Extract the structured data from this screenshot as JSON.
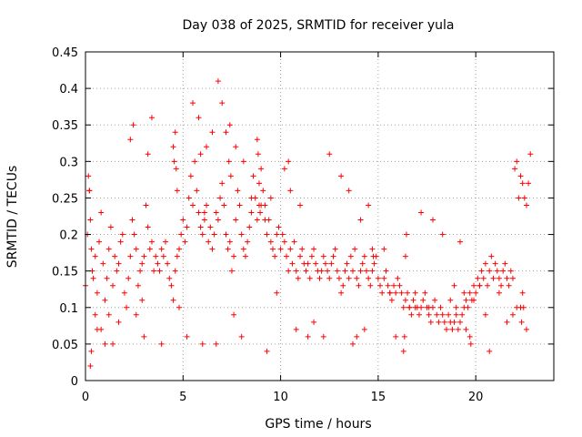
{
  "chart_data": {
    "type": "scatter",
    "title": "Day 038 of 2025, SRMTID for receiver yula",
    "xlabel": "GPS time / hours",
    "ylabel": "SRMTID / TECUs",
    "xlim": [
      0,
      24
    ],
    "ylim": [
      0,
      0.45
    ],
    "xticks": [
      0,
      5,
      10,
      15,
      20
    ],
    "xtick_labels": [
      "0",
      "5",
      "10",
      "15",
      "20"
    ],
    "yticks": [
      0,
      0.05,
      0.1,
      0.15,
      0.2,
      0.25,
      0.3,
      0.35,
      0.4,
      0.45
    ],
    "ytick_labels": [
      "0",
      "0.05",
      "0.1",
      "0.15",
      "0.2",
      "0.25",
      "0.3",
      "0.35",
      "0.4",
      "0.45"
    ],
    "grid": true,
    "marker": "+",
    "color": "#ff0000",
    "series": [
      {
        "name": "SRMTID",
        "x": [
          0.0,
          0.1,
          0.15,
          0.2,
          0.25,
          0.3,
          0.35,
          0.4,
          0.5,
          0.6,
          0.7,
          0.8,
          0.9,
          1.0,
          1.1,
          1.2,
          1.3,
          1.4,
          1.5,
          1.6,
          1.7,
          1.8,
          1.9,
          2.0,
          2.1,
          2.2,
          2.3,
          2.4,
          2.5,
          2.6,
          2.7,
          2.8,
          2.9,
          3.0,
          3.1,
          3.2,
          3.3,
          3.4,
          3.5,
          3.6,
          3.7,
          3.8,
          3.9,
          4.0,
          4.1,
          4.2,
          4.3,
          4.4,
          4.5,
          4.6,
          4.7,
          4.8,
          4.9,
          5.0,
          5.1,
          5.2,
          5.3,
          5.4,
          5.5,
          5.6,
          5.7,
          5.8,
          5.9,
          6.0,
          6.1,
          6.2,
          6.3,
          6.4,
          6.5,
          6.6,
          6.7,
          6.8,
          6.9,
          7.0,
          7.1,
          7.2,
          7.3,
          7.4,
          7.5,
          7.6,
          7.7,
          7.8,
          7.9,
          8.0,
          8.1,
          8.2,
          8.3,
          8.4,
          8.5,
          8.6,
          8.7,
          8.8,
          8.9,
          9.0,
          9.1,
          9.2,
          9.3,
          9.4,
          9.5,
          9.6,
          9.7,
          9.8,
          9.9,
          10.0,
          10.1,
          10.2,
          10.3,
          10.4,
          10.5,
          10.6,
          10.7,
          10.8,
          10.9,
          11.0,
          11.1,
          11.2,
          11.3,
          11.4,
          11.5,
          11.6,
          11.7,
          11.8,
          11.9,
          12.0,
          12.1,
          12.2,
          12.3,
          12.4,
          12.5,
          12.6,
          12.7,
          12.8,
          12.9,
          13.0,
          13.1,
          13.2,
          13.3,
          13.4,
          13.5,
          13.6,
          13.7,
          13.8,
          13.9,
          14.0,
          14.1,
          14.2,
          14.3,
          14.4,
          14.5,
          14.6,
          14.7,
          14.8,
          14.9,
          15.0,
          15.1,
          15.2,
          15.3,
          15.4,
          15.5,
          15.6,
          15.7,
          15.8,
          15.9,
          16.0,
          16.1,
          16.2,
          16.3,
          16.4,
          16.5,
          16.6,
          16.7,
          16.8,
          16.9,
          17.0,
          17.1,
          17.2,
          17.3,
          17.4,
          17.5,
          17.6,
          17.7,
          17.8,
          17.9,
          18.0,
          18.1,
          18.2,
          18.3,
          18.4,
          18.5,
          18.6,
          18.7,
          18.8,
          18.9,
          19.0,
          19.1,
          19.2,
          19.3,
          19.4,
          19.5,
          19.6,
          19.7,
          19.8,
          19.9,
          20.0,
          20.1,
          20.2,
          20.3,
          20.4,
          20.5,
          20.6,
          20.7,
          20.8,
          20.9,
          21.0,
          21.1,
          21.2,
          21.3,
          21.4,
          21.5,
          21.6,
          21.7,
          21.8,
          21.9,
          22.0,
          22.1,
          22.2,
          22.3,
          22.4,
          22.5,
          22.6,
          22.7,
          22.8,
          0.2,
          0.25,
          0.3,
          0.8,
          1.2,
          1.4,
          2.3,
          2.45,
          3.2,
          3.4,
          4.5,
          4.55,
          4.6,
          4.65,
          4.7,
          5.5,
          5.8,
          5.9,
          6.1,
          6.2,
          6.5,
          6.8,
          7.0,
          7.2,
          7.35,
          7.4,
          7.45,
          7.7,
          8.1,
          8.5,
          8.8,
          8.85,
          8.9,
          8.95,
          9.0,
          9.2,
          9.5,
          10.2,
          10.4,
          10.5,
          11.0,
          12.5,
          13.1,
          13.5,
          14.1,
          14.5,
          14.7,
          14.75,
          15.3,
          15.6,
          16.3,
          16.35,
          16.4,
          16.45,
          17.2,
          17.8,
          18.3,
          19.2,
          19.5,
          19.7,
          19.75,
          20.5,
          21.2,
          22.3,
          22.35,
          22.4,
          22.45,
          0.5,
          1.7,
          2.6,
          3.9,
          5.2,
          6.7,
          9.3,
          11.4,
          12.2,
          13.7,
          15.9,
          16.9,
          18.7,
          19.0,
          19.4,
          19.9,
          21.6,
          22.6,
          1.0,
          3.0,
          6.0,
          8.0,
          10.8,
          13.9,
          16.6,
          18.9,
          20.2,
          21.9,
          0.6,
          2.9,
          4.8,
          7.6,
          9.8,
          11.7,
          14.3,
          17.6,
          20.7,
          22.1
        ],
        "y": [
          0.13,
          0.2,
          0.28,
          0.26,
          0.22,
          0.18,
          0.15,
          0.14,
          0.17,
          0.12,
          0.19,
          0.23,
          0.16,
          0.11,
          0.14,
          0.18,
          0.21,
          0.13,
          0.17,
          0.15,
          0.16,
          0.19,
          0.2,
          0.12,
          0.1,
          0.14,
          0.17,
          0.22,
          0.2,
          0.18,
          0.13,
          0.15,
          0.16,
          0.17,
          0.24,
          0.21,
          0.18,
          0.19,
          0.15,
          0.17,
          0.16,
          0.15,
          0.18,
          0.17,
          0.19,
          0.16,
          0.14,
          0.13,
          0.11,
          0.15,
          0.17,
          0.18,
          0.2,
          0.22,
          0.19,
          0.21,
          0.25,
          0.28,
          0.24,
          0.3,
          0.26,
          0.23,
          0.21,
          0.2,
          0.22,
          0.24,
          0.19,
          0.21,
          0.18,
          0.2,
          0.23,
          0.22,
          0.25,
          0.27,
          0.24,
          0.2,
          0.18,
          0.19,
          0.15,
          0.17,
          0.22,
          0.26,
          0.24,
          0.2,
          0.18,
          0.17,
          0.19,
          0.21,
          0.23,
          0.28,
          0.25,
          0.22,
          0.27,
          0.29,
          0.26,
          0.24,
          0.2,
          0.22,
          0.19,
          0.18,
          0.17,
          0.2,
          0.21,
          0.18,
          0.2,
          0.19,
          0.17,
          0.15,
          0.18,
          0.16,
          0.19,
          0.15,
          0.14,
          0.17,
          0.18,
          0.16,
          0.15,
          0.16,
          0.14,
          0.17,
          0.18,
          0.16,
          0.15,
          0.14,
          0.15,
          0.17,
          0.16,
          0.15,
          0.14,
          0.16,
          0.17,
          0.18,
          0.15,
          0.14,
          0.12,
          0.13,
          0.15,
          0.16,
          0.14,
          0.17,
          0.15,
          0.18,
          0.14,
          0.13,
          0.15,
          0.16,
          0.17,
          0.15,
          0.14,
          0.13,
          0.15,
          0.16,
          0.17,
          0.14,
          0.13,
          0.12,
          0.14,
          0.15,
          0.13,
          0.12,
          0.11,
          0.13,
          0.12,
          0.14,
          0.13,
          0.12,
          0.1,
          0.11,
          0.12,
          0.1,
          0.09,
          0.11,
          0.12,
          0.1,
          0.09,
          0.1,
          0.11,
          0.12,
          0.1,
          0.09,
          0.08,
          0.1,
          0.11,
          0.09,
          0.08,
          0.1,
          0.09,
          0.08,
          0.07,
          0.09,
          0.08,
          0.07,
          0.08,
          0.09,
          0.07,
          0.08,
          0.09,
          0.1,
          0.11,
          0.1,
          0.12,
          0.11,
          0.13,
          0.12,
          0.14,
          0.13,
          0.15,
          0.14,
          0.16,
          0.13,
          0.15,
          0.17,
          0.14,
          0.16,
          0.15,
          0.14,
          0.13,
          0.15,
          0.16,
          0.14,
          0.13,
          0.15,
          0.14,
          0.29,
          0.3,
          0.25,
          0.28,
          0.27,
          0.25,
          0.24,
          0.27,
          0.31,
          0.26,
          0.02,
          0.04,
          0.07,
          0.09,
          0.05,
          0.33,
          0.35,
          0.31,
          0.36,
          0.32,
          0.3,
          0.34,
          0.29,
          0.26,
          0.38,
          0.36,
          0.31,
          0.23,
          0.32,
          0.34,
          0.41,
          0.38,
          0.34,
          0.3,
          0.35,
          0.28,
          0.32,
          0.3,
          0.25,
          0.33,
          0.31,
          0.24,
          0.23,
          0.24,
          0.22,
          0.25,
          0.29,
          0.3,
          0.26,
          0.24,
          0.31,
          0.28,
          0.26,
          0.22,
          0.24,
          0.18,
          0.17,
          0.18,
          0.12,
          0.04,
          0.06,
          0.17,
          0.2,
          0.23,
          0.22,
          0.2,
          0.19,
          0.07,
          0.06,
          0.05,
          0.09,
          0.12,
          0.1,
          0.08,
          0.12,
          0.1,
          0.09,
          0.08,
          0.09,
          0.05,
          0.06,
          0.05,
          0.04,
          0.06,
          0.06,
          0.05,
          0.06,
          0.1,
          0.11,
          0.1,
          0.12,
          0.11,
          0.08,
          0.07,
          0.05,
          0.06,
          0.05,
          0.06,
          0.07,
          0.06,
          0.1,
          0.13,
          0.13,
          0.09,
          0.07,
          0.11,
          0.1,
          0.09,
          0.12,
          0.08,
          0.07,
          0.1,
          0.04,
          0.1
        ]
      }
    ]
  }
}
